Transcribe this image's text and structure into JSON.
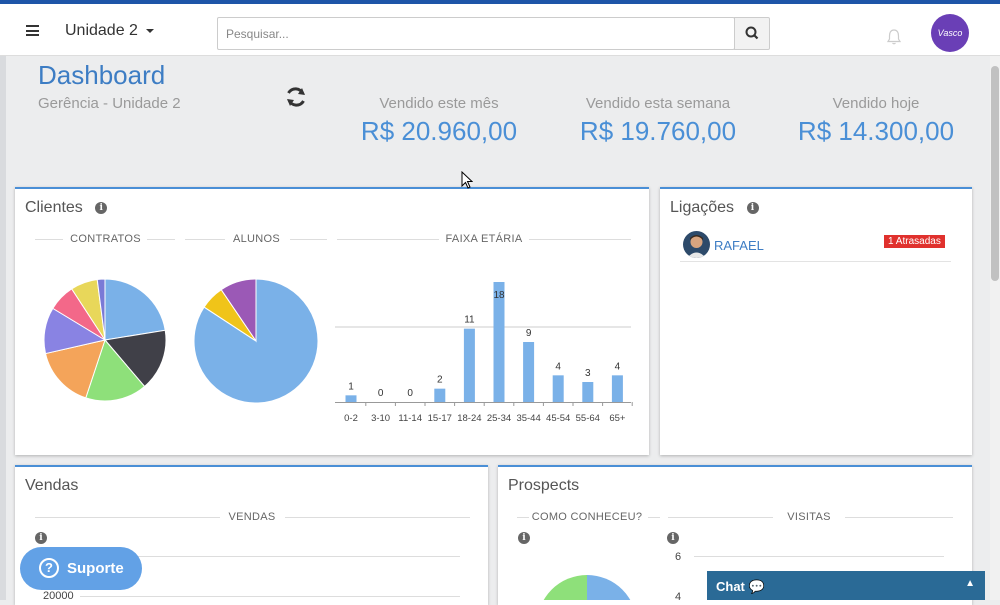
{
  "header": {
    "unit_select": "Unidade 2",
    "search_placeholder": "Pesquisar...",
    "avatar_text": "Vasco"
  },
  "dashboard": {
    "title": "Dashboard",
    "subtitle": "Gerência - Unidade 2",
    "stats": [
      {
        "label": "Vendido este mês",
        "value": "R$ 20.960,00"
      },
      {
        "label": "Vendido esta semana",
        "value": "R$ 19.760,00"
      },
      {
        "label": "Vendido hoje",
        "value": "R$ 14.300,00"
      }
    ]
  },
  "clientes": {
    "title": "Clientes",
    "contratos_label": "CONTRATOS",
    "alunos_label": "ALUNOS",
    "faixa_label": "FAIXA ETÁRIA"
  },
  "chart_data": [
    {
      "type": "pie",
      "title": "CONTRATOS",
      "values": [
        22,
        16,
        16,
        16,
        12,
        7,
        7,
        2
      ],
      "colors": [
        "#7ab1e8",
        "#404048",
        "#8ee07a",
        "#f4a45a",
        "#8983e3",
        "#f36889",
        "#e8d75a",
        "#7a7ad6"
      ]
    },
    {
      "type": "pie",
      "title": "ALUNOS",
      "values": [
        80,
        6,
        9
      ],
      "colors": [
        "#7ab1e8",
        "#f0c419",
        "#9b59b6"
      ]
    },
    {
      "type": "bar",
      "title": "FAIXA ETÁRIA",
      "categories": [
        "0-2",
        "3-10",
        "11-14",
        "15-17",
        "18-24",
        "25-34",
        "35-44",
        "45-54",
        "55-64",
        "65+"
      ],
      "values": [
        1,
        0,
        0,
        2,
        11,
        18,
        9,
        4,
        3,
        4
      ],
      "ylim": [
        0,
        20
      ],
      "color": "#7ab1e8"
    }
  ],
  "ligacoes": {
    "title": "Ligações",
    "items": [
      {
        "name": "RAFAEL",
        "badge": "1 Atrasadas"
      }
    ]
  },
  "vendas": {
    "title": "Vendas",
    "section_label": "VENDAS",
    "axis_tick": "20000"
  },
  "prospects": {
    "title": "Prospects",
    "como_label": "COMO CONHECEU?",
    "visitas_label": "VISITAS",
    "ticks": [
      "6",
      "4"
    ]
  },
  "widgets": {
    "suporte": "Suporte",
    "chat": "Chat"
  }
}
